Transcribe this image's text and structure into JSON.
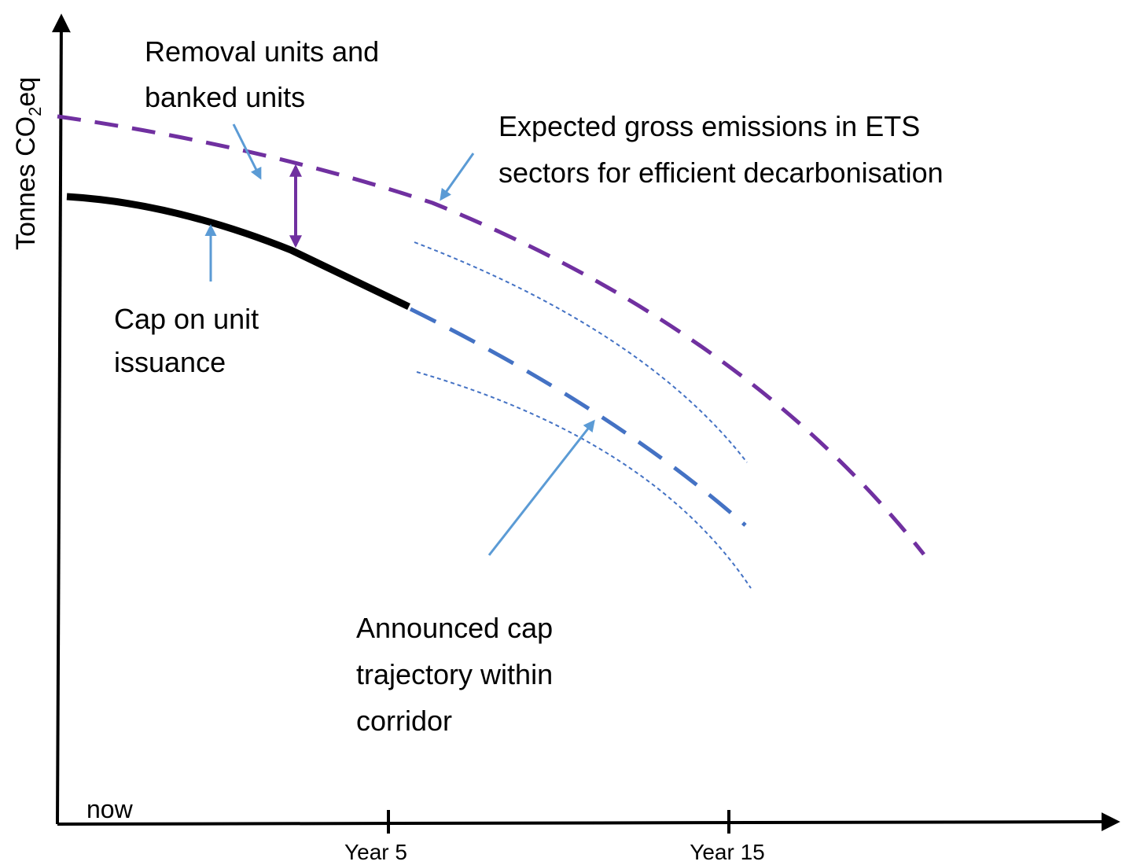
{
  "y_axis_label": {
    "main": "Tonnes  CO",
    "sub": "2",
    "end": "eq"
  },
  "x_labels": {
    "start": "now",
    "tick1": "Year 5",
    "tick2": "Year 15"
  },
  "annotations": {
    "removal": [
      "Removal units and",
      "banked units"
    ],
    "expected": [
      "Expected gross emissions in ETS",
      "sectors for efficient decarbonisation"
    ],
    "cap": [
      "Cap on unit",
      "issuance"
    ],
    "announced": [
      "Announced cap",
      "trajectory within",
      "corridor"
    ]
  }
}
